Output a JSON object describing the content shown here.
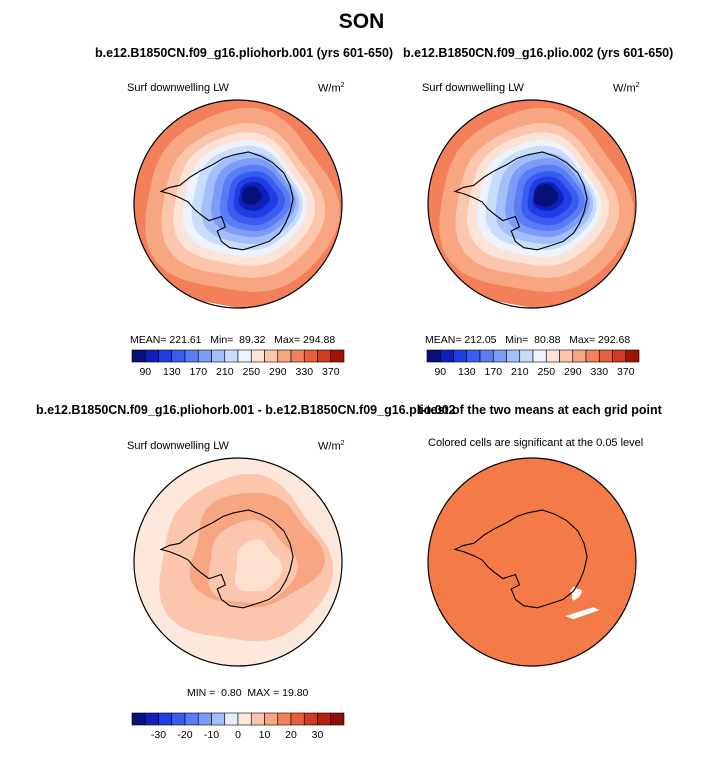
{
  "figure": {
    "title": "SON"
  },
  "chart_data": [
    {
      "type": "heatmap",
      "projection": "south-polar-stereographic",
      "title": "b.e12.B1850CN.f09_g16.pliohorb.001 (yrs 601-650)",
      "variable": "Surf downwelling LW",
      "units": "W/m",
      "units_exp": "2",
      "stats": {
        "mean": "221.61",
        "min": "89.32",
        "max": "294.88"
      },
      "stats_text": "MEAN= 221.61   Min=  89.32   Max= 294.88",
      "colorbar": {
        "levels": [
          90,
          110,
          130,
          150,
          170,
          190,
          210,
          230,
          250,
          270,
          290,
          310,
          330,
          350,
          370
        ],
        "tick_labels": [
          "90",
          "130",
          "170",
          "210",
          "250",
          "290",
          "330",
          "370"
        ],
        "colors": [
          "#08107a",
          "#0f1fbb",
          "#1f3fe6",
          "#3a5cf0",
          "#5a7cf5",
          "#7b9cf8",
          "#a3bff9",
          "#c8dcfb",
          "#ecf3fd",
          "#fde3d6",
          "#fbc6ac",
          "#f8a582",
          "#f3805a",
          "#e95f3b",
          "#d43a22",
          "#9e1508"
        ]
      }
    },
    {
      "type": "heatmap",
      "projection": "south-polar-stereographic",
      "title": "b.e12.B1850CN.f09_g16.plio.002 (yrs 601-650)",
      "variable": "Surf downwelling LW",
      "units": "W/m",
      "units_exp": "2",
      "stats": {
        "mean": "212.05",
        "min": "80.88",
        "max": "292.68"
      },
      "stats_text": "MEAN= 212.05   Min=  80.88   Max= 292.68",
      "colorbar": {
        "levels": [
          90,
          110,
          130,
          150,
          170,
          190,
          210,
          230,
          250,
          270,
          290,
          310,
          330,
          350,
          370
        ],
        "tick_labels": [
          "90",
          "130",
          "170",
          "210",
          "250",
          "290",
          "330",
          "370"
        ],
        "colors": [
          "#08107a",
          "#0f1fbb",
          "#1f3fe6",
          "#3a5cf0",
          "#5a7cf5",
          "#7b9cf8",
          "#a3bff9",
          "#c8dcfb",
          "#ecf3fd",
          "#fde3d6",
          "#fbc6ac",
          "#f8a582",
          "#f3805a",
          "#e95f3b",
          "#d43a22",
          "#9e1508"
        ]
      }
    },
    {
      "type": "heatmap",
      "projection": "south-polar-stereographic",
      "title": "b.e12.B1850CN.f09_g16.pliohorb.001 - b.e12.B1850CN.f09_g16.plio.002",
      "variable": "Surf downwelling LW",
      "units": "W/m",
      "units_exp": "2",
      "stats": {
        "min": "0.80",
        "max": "19.80"
      },
      "stats_text": "MIN =  0.80  MAX = 19.80",
      "colorbar": {
        "levels": [
          -35,
          -30,
          -25,
          -20,
          -15,
          -10,
          -5,
          0,
          5,
          10,
          15,
          20,
          25,
          30,
          35
        ],
        "tick_labels": [
          "-30",
          "-20",
          "-10",
          "0",
          "10",
          "20",
          "30"
        ],
        "colors": [
          "#08107a",
          "#0f1fbb",
          "#1f3fe6",
          "#3a5cf0",
          "#5a7cf5",
          "#7b9cf8",
          "#a3bff9",
          "#e6eefc",
          "#fde8dc",
          "#fbc6ac",
          "#f8a582",
          "#f3805a",
          "#e95f3b",
          "#d43a22",
          "#b3220f",
          "#8a0f05"
        ]
      }
    },
    {
      "type": "heatmap",
      "projection": "south-polar-stereographic",
      "title": "t-test of the two means at each grid point",
      "subtitle": "Colored cells are significant at the 0.05 level",
      "fill_color": "#f47b47"
    }
  ]
}
